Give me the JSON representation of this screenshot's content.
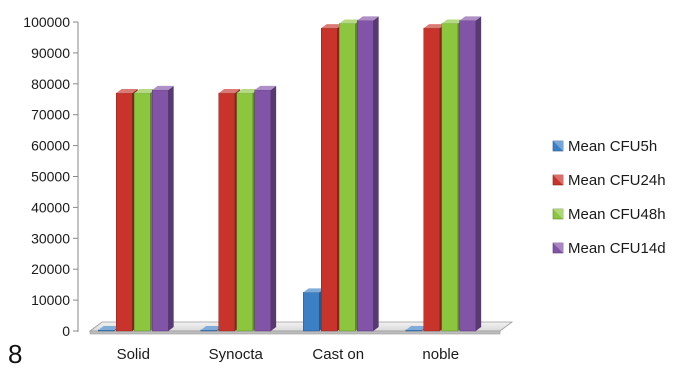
{
  "figure_label": "8",
  "chart_data": {
    "type": "bar",
    "style": "3d-clustered-column",
    "categories": [
      "Solid",
      "Synocta",
      "Cast on",
      "noble"
    ],
    "series": [
      {
        "name": "Mean CFU5h",
        "color": "#3b7fc4",
        "values": [
          300,
          300,
          12500,
          300
        ]
      },
      {
        "name": "Mean CFU24h",
        "color": "#c8342c",
        "values": [
          77000,
          77000,
          98000,
          98000
        ]
      },
      {
        "name": "Mean CFU48h",
        "color": "#8cc63f",
        "values": [
          77000,
          77000,
          99500,
          99500
        ]
      },
      {
        "name": "Mean CFU14d",
        "color": "#8254a8",
        "values": [
          78000,
          78000,
          100500,
          100500
        ]
      }
    ],
    "ylim": [
      0,
      100000
    ],
    "yticks": [
      0,
      10000,
      20000,
      30000,
      40000,
      50000,
      60000,
      70000,
      80000,
      90000,
      100000
    ],
    "grid": false,
    "legend_position": "right",
    "title": "",
    "xlabel": "",
    "ylabel": ""
  }
}
